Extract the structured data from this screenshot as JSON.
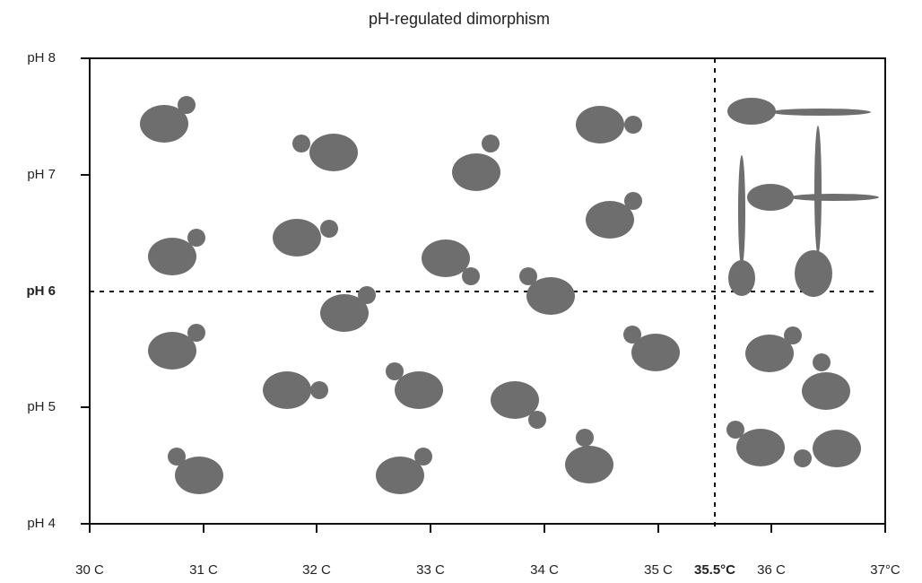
{
  "title": "pH-regulated dimorphism",
  "x_axis": {
    "labels": [
      "30 C",
      "31 C",
      "32 C",
      "33 C",
      "34 C",
      "35 C",
      "35.5°C",
      "36 C",
      "37°C"
    ]
  },
  "y_axis": {
    "labels": [
      "pH 8",
      "pH 7",
      "pH 6",
      "pH 5",
      "pH 4"
    ]
  }
}
